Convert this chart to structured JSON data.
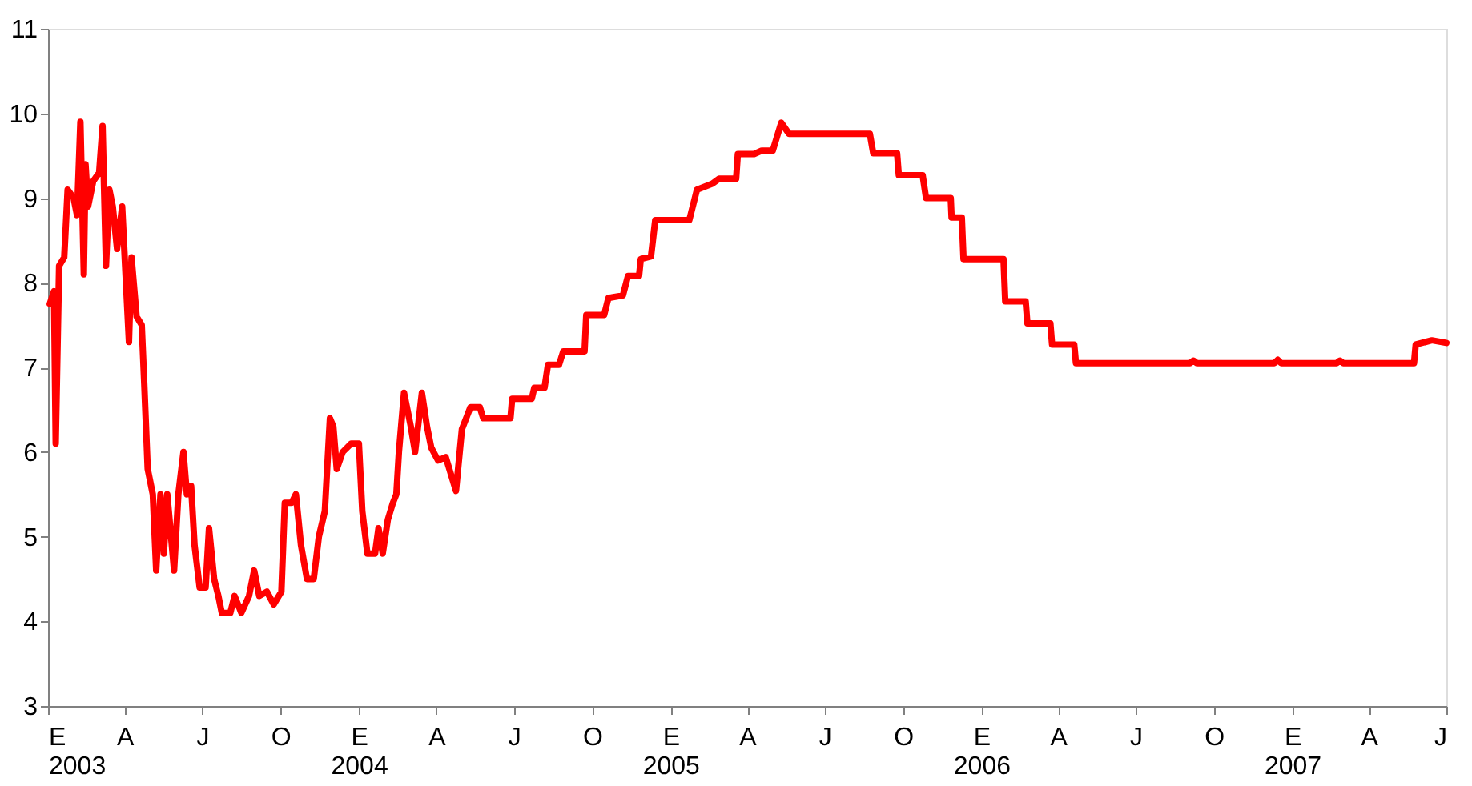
{
  "chart_data": {
    "type": "line",
    "x": [
      "2003-01-03",
      "2003-01-08",
      "2003-01-10",
      "2003-01-14",
      "2003-01-20",
      "2003-01-24",
      "2003-01-31",
      "2003-02-04",
      "2003-02-08",
      "2003-02-12",
      "2003-02-14",
      "2003-02-17",
      "2003-02-23",
      "2003-03-02",
      "2003-03-06",
      "2003-03-10",
      "2003-03-14",
      "2003-03-18",
      "2003-03-23",
      "2003-03-29",
      "2003-04-06",
      "2003-04-09",
      "2003-04-15",
      "2003-04-21",
      "2003-04-24",
      "2003-04-28",
      "2003-05-04",
      "2003-05-08",
      "2003-05-13",
      "2003-05-17",
      "2003-05-21",
      "2003-05-29",
      "2003-06-03",
      "2003-06-09",
      "2003-06-13",
      "2003-06-18",
      "2003-06-22",
      "2003-06-28",
      "2003-07-05",
      "2003-07-09",
      "2003-07-15",
      "2003-07-20",
      "2003-07-24",
      "2003-08-03",
      "2003-08-08",
      "2003-08-16",
      "2003-08-25",
      "2003-08-31",
      "2003-09-06",
      "2003-09-15",
      "2003-09-23",
      "2003-10-02",
      "2003-10-06",
      "2003-10-14",
      "2003-10-19",
      "2003-10-25",
      "2003-11-01",
      "2003-11-09",
      "2003-11-15",
      "2003-11-22",
      "2003-11-28",
      "2003-12-02",
      "2003-12-06",
      "2003-12-13",
      "2003-12-23",
      "2004-01-01",
      "2004-01-05",
      "2004-01-11",
      "2004-01-20",
      "2004-01-24",
      "2004-01-29",
      "2004-02-04",
      "2004-02-10",
      "2004-02-14",
      "2004-02-17",
      "2004-02-23",
      "2004-03-02",
      "2004-03-07",
      "2004-03-15",
      "2004-03-21",
      "2004-03-26",
      "2004-04-03",
      "2004-04-12",
      "2004-04-24",
      "2004-05-01",
      "2004-05-11",
      "2004-05-22",
      "2004-05-26",
      "2004-06-27",
      "2004-06-29",
      "2004-07-22",
      "2004-07-25",
      "2004-08-06",
      "2004-08-10",
      "2004-08-23",
      "2004-08-28",
      "2004-09-22",
      "2004-09-24",
      "2004-10-15",
      "2004-10-20",
      "2004-11-06",
      "2004-11-12",
      "2004-11-25",
      "2004-11-27",
      "2004-12-09",
      "2004-12-14",
      "2005-01-23",
      "2005-02-01",
      "2005-02-19",
      "2005-02-27",
      "2005-03-19",
      "2005-03-21",
      "2005-04-09",
      "2005-04-18",
      "2005-05-01",
      "2005-05-11",
      "2005-05-20",
      "2005-08-23",
      "2005-08-27",
      "2005-09-24",
      "2005-09-26",
      "2005-10-24",
      "2005-10-28",
      "2005-11-26",
      "2005-11-27",
      "2005-12-09",
      "2005-12-11",
      "2006-01-27",
      "2006-01-29",
      "2006-02-22",
      "2006-02-24",
      "2006-03-23",
      "2006-03-25",
      "2006-04-20",
      "2006-04-22",
      "2006-09-03",
      "2006-09-07",
      "2006-09-11",
      "2006-12-11",
      "2006-12-15",
      "2006-12-19",
      "2007-02-22",
      "2007-02-26",
      "2007-03-02",
      "2007-05-24",
      "2007-05-26",
      "2007-06-14",
      "2007-07-01"
    ],
    "series": [
      {
        "color": "#ff0000",
        "values": [
          7.75,
          7.9,
          6.1,
          8.2,
          8.3,
          9.1,
          9.0,
          8.8,
          9.9,
          8.1,
          9.4,
          8.9,
          9.2,
          9.3,
          9.85,
          8.2,
          9.1,
          8.9,
          8.4,
          8.9,
          7.3,
          8.3,
          7.6,
          7.5,
          6.8,
          5.8,
          5.5,
          4.6,
          5.5,
          4.8,
          5.5,
          4.6,
          5.5,
          6.0,
          5.5,
          5.6,
          4.9,
          4.4,
          4.4,
          5.1,
          4.5,
          4.3,
          4.1,
          4.1,
          4.3,
          4.1,
          4.3,
          4.6,
          4.3,
          4.35,
          4.2,
          4.35,
          5.4,
          5.4,
          5.5,
          4.9,
          4.5,
          4.5,
          5.0,
          5.3,
          6.4,
          6.3,
          5.8,
          6.0,
          6.1,
          6.1,
          5.3,
          4.8,
          4.8,
          5.1,
          4.8,
          5.2,
          5.4,
          5.5,
          6.0,
          6.7,
          6.3,
          6.0,
          6.7,
          6.3,
          6.05,
          5.9,
          5.94,
          5.54,
          6.27,
          6.53,
          6.53,
          6.4,
          6.4,
          6.63,
          6.63,
          6.76,
          6.76,
          7.03,
          7.03,
          7.19,
          7.19,
          7.62,
          7.62,
          7.82,
          7.85,
          8.08,
          8.08,
          8.28,
          8.31,
          8.74,
          8.74,
          9.1,
          9.17,
          9.23,
          9.23,
          9.52,
          9.52,
          9.56,
          9.56,
          9.89,
          9.76,
          9.76,
          9.53,
          9.53,
          9.27,
          9.27,
          9.0,
          9.0,
          8.77,
          8.77,
          8.28,
          8.28,
          7.78,
          7.78,
          7.52,
          7.52,
          7.27,
          7.27,
          7.05,
          7.05,
          7.08,
          7.05,
          7.05,
          7.09,
          7.05,
          7.05,
          7.08,
          7.05,
          7.05,
          7.27,
          7.32,
          7.29
        ]
      }
    ],
    "xlim": [
      "2003-01-01",
      "2007-07-01"
    ],
    "xticks": [
      {
        "value": "2003-01-01",
        "label": "E\n2003"
      },
      {
        "value": "2003-04-01",
        "label": "A"
      },
      {
        "value": "2003-07-01",
        "label": "J"
      },
      {
        "value": "2003-10-01",
        "label": "O"
      },
      {
        "value": "2004-01-01",
        "label": "E\n2004"
      },
      {
        "value": "2004-04-01",
        "label": "A"
      },
      {
        "value": "2004-07-01",
        "label": "J"
      },
      {
        "value": "2004-10-01",
        "label": "O"
      },
      {
        "value": "2005-01-01",
        "label": "E\n2005"
      },
      {
        "value": "2005-04-01",
        "label": "A"
      },
      {
        "value": "2005-07-01",
        "label": "J"
      },
      {
        "value": "2005-10-01",
        "label": "O"
      },
      {
        "value": "2006-01-01",
        "label": "E\n2006"
      },
      {
        "value": "2006-04-01",
        "label": "A"
      },
      {
        "value": "2006-07-01",
        "label": "J"
      },
      {
        "value": "2006-10-01",
        "label": "O"
      },
      {
        "value": "2007-01-01",
        "label": "E\n2007"
      },
      {
        "value": "2007-04-01",
        "label": "A"
      },
      {
        "value": "2007-07-01",
        "label": "J"
      }
    ],
    "ylim": [
      3,
      11
    ],
    "yticks": [
      3,
      4,
      5,
      6,
      7,
      8,
      9,
      10,
      11
    ],
    "grid": false,
    "marker": "none",
    "line_style": "solid"
  }
}
